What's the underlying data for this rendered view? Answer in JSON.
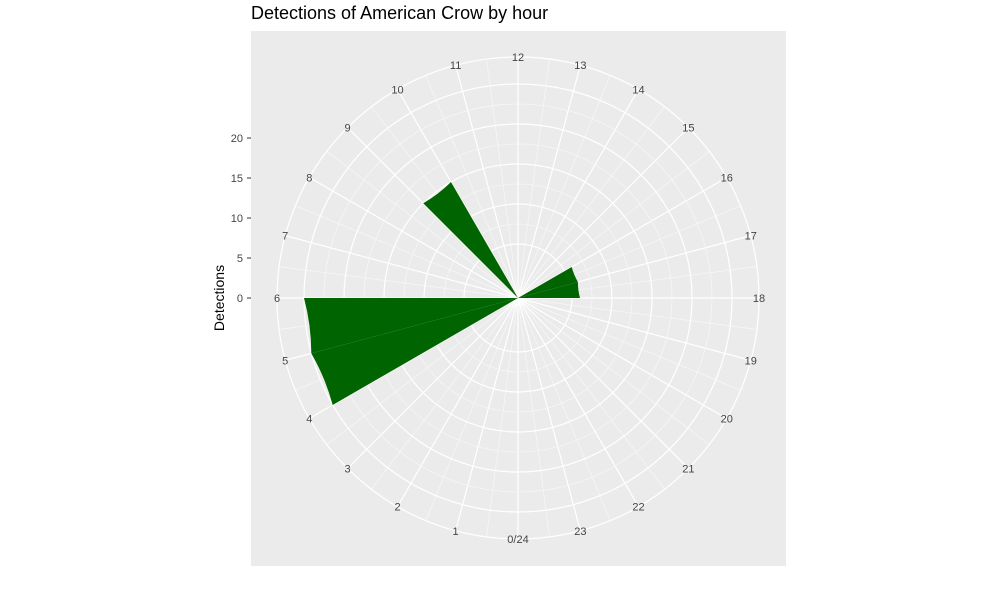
{
  "chart_data": {
    "type": "bar",
    "coord": "polar",
    "title": "Detections of American Crow by hour",
    "xlabel": "",
    "ylabel": "Detections",
    "categories": [
      "0/24",
      "1",
      "2",
      "3",
      "4",
      "5",
      "6",
      "7",
      "8",
      "9",
      "10",
      "11",
      "12",
      "13",
      "14",
      "15",
      "16",
      "17",
      "18",
      "19",
      "20",
      "21",
      "22",
      "23"
    ],
    "values": [
      0,
      0,
      0,
      0,
      0,
      20,
      20,
      0,
      0,
      0,
      10,
      0,
      0,
      0,
      0,
      0,
      0,
      1,
      1,
      0,
      0,
      0,
      0,
      0
    ],
    "y_ticks": [
      0,
      5,
      10,
      15,
      20
    ],
    "y_tick_labels": [
      "0",
      "5",
      "10",
      "15",
      "20"
    ],
    "ylim": [
      0,
      20
    ],
    "bar_color": "#006400",
    "panel_color": "#ebebeb",
    "grid": true
  }
}
